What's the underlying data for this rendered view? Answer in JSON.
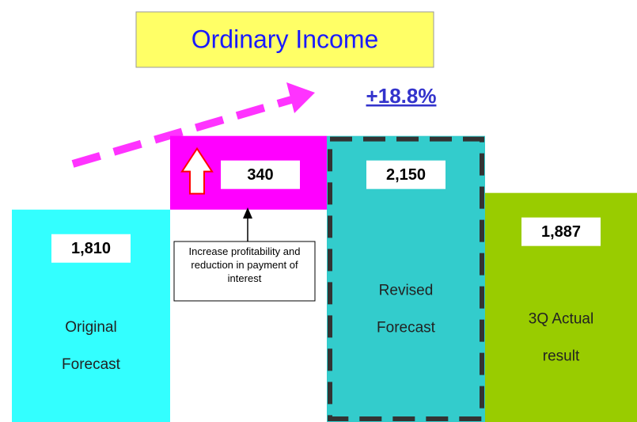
{
  "chart_data": {
    "type": "waterfall",
    "title": "Ordinary Income",
    "change_label": "+18.8%",
    "annotation": "Increase profitability and reduction in payment of interest",
    "categories": [
      [
        "Original",
        "Forecast"
      ],
      null,
      [
        "Revised",
        "Forecast"
      ],
      [
        "3Q Actual",
        "result"
      ]
    ],
    "values": [
      1810,
      340,
      2150,
      1887
    ],
    "value_labels": [
      "1,810",
      "340",
      "2,150",
      "1,887"
    ],
    "kinds": [
      "total",
      "increase",
      "total",
      "total"
    ],
    "colors": [
      "#33ffff",
      "#ff00ff",
      "#33cccc",
      "#99cc00"
    ],
    "dashed": [
      false,
      false,
      true,
      false
    ],
    "ylim": [
      830,
      2200
    ]
  }
}
